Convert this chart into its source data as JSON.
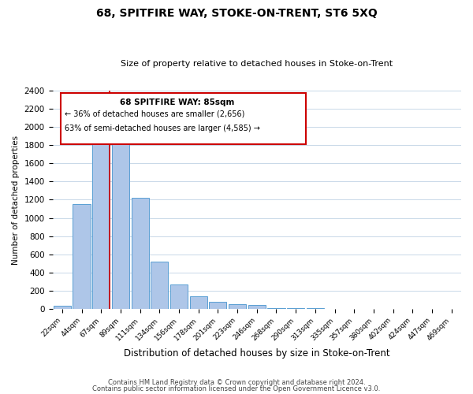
{
  "title": "68, SPITFIRE WAY, STOKE-ON-TRENT, ST6 5XQ",
  "subtitle": "Size of property relative to detached houses in Stoke-on-Trent",
  "xlabel": "Distribution of detached houses by size in Stoke-on-Trent",
  "ylabel": "Number of detached properties",
  "bin_labels": [
    "22sqm",
    "44sqm",
    "67sqm",
    "89sqm",
    "111sqm",
    "134sqm",
    "156sqm",
    "178sqm",
    "201sqm",
    "223sqm",
    "246sqm",
    "268sqm",
    "290sqm",
    "313sqm",
    "335sqm",
    "357sqm",
    "380sqm",
    "402sqm",
    "424sqm",
    "447sqm",
    "469sqm"
  ],
  "bar_heights": [
    30,
    1150,
    1950,
    1830,
    1220,
    520,
    265,
    140,
    75,
    50,
    40,
    10,
    5,
    5,
    3,
    2,
    2,
    2,
    1,
    1,
    1
  ],
  "bar_color": "#aec6e8",
  "bar_edge_color": "#5a9fd4",
  "vline_color": "#cc0000",
  "annotation_title": "68 SPITFIRE WAY: 85sqm",
  "annotation_line1": "← 36% of detached houses are smaller (2,656)",
  "annotation_line2": "63% of semi-detached houses are larger (4,585) →",
  "annotation_box_color": "#ffffff",
  "annotation_box_edge": "#cc0000",
  "footer_line1": "Contains HM Land Registry data © Crown copyright and database right 2024.",
  "footer_line2": "Contains public sector information licensed under the Open Government Licence v3.0.",
  "bg_color": "#ffffff",
  "grid_color": "#c8d8e8",
  "ylim": [
    0,
    2400
  ],
  "yticks": [
    0,
    200,
    400,
    600,
    800,
    1000,
    1200,
    1400,
    1600,
    1800,
    2000,
    2200,
    2400
  ]
}
